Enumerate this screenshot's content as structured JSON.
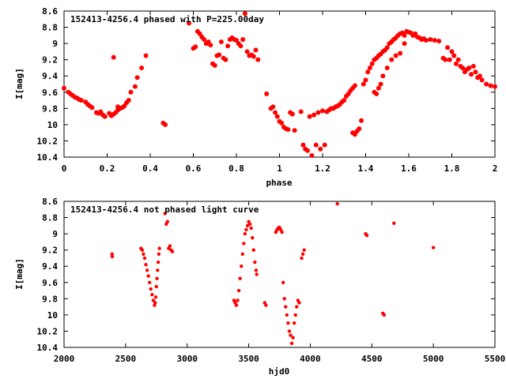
{
  "chart_data": [
    {
      "type": "scatter",
      "title": "152413-4256.4 phased with P=225.00day",
      "xlabel": "phase",
      "ylabel": "I[mag]",
      "xlim": [
        0,
        2
      ],
      "ylim": [
        10.4,
        8.6
      ],
      "y_inverted": true,
      "xticks": [
        "0",
        "0.2",
        "0.4",
        "0.6",
        "0.8",
        "1",
        "1.2",
        "1.4",
        "1.6",
        "1.8",
        "2"
      ],
      "yticks": [
        "8.6",
        "8.8",
        "9",
        "9.2",
        "9.4",
        "9.6",
        "9.8",
        "10",
        "10.2",
        "10.4"
      ],
      "grid": false,
      "marker_color": "#ff0000",
      "points": [
        [
          0.0,
          9.55
        ],
        [
          0.02,
          9.6
        ],
        [
          0.03,
          9.62
        ],
        [
          0.04,
          9.64
        ],
        [
          0.05,
          9.66
        ],
        [
          0.06,
          9.67
        ],
        [
          0.07,
          9.69
        ],
        [
          0.08,
          9.7
        ],
        [
          0.1,
          9.72
        ],
        [
          0.11,
          9.75
        ],
        [
          0.12,
          9.77
        ],
        [
          0.13,
          9.79
        ],
        [
          0.15,
          9.85
        ],
        [
          0.16,
          9.86
        ],
        [
          0.17,
          9.84
        ],
        [
          0.18,
          9.88
        ],
        [
          0.19,
          9.9
        ],
        [
          0.21,
          9.86
        ],
        [
          0.22,
          9.89
        ],
        [
          0.23,
          9.87
        ],
        [
          0.24,
          9.85
        ],
        [
          0.25,
          9.82
        ],
        [
          0.25,
          9.78
        ],
        [
          0.26,
          9.8
        ],
        [
          0.27,
          9.79
        ],
        [
          0.28,
          9.77
        ],
        [
          0.29,
          9.73
        ],
        [
          0.3,
          9.7
        ],
        [
          0.31,
          9.6
        ],
        [
          0.23,
          9.17
        ],
        [
          0.33,
          9.53
        ],
        [
          0.34,
          9.42
        ],
        [
          0.36,
          9.3
        ],
        [
          0.38,
          9.15
        ],
        [
          0.46,
          9.98
        ],
        [
          0.47,
          10.0
        ],
        [
          0.58,
          8.75
        ],
        [
          0.6,
          9.06
        ],
        [
          0.61,
          9.04
        ],
        [
          0.62,
          8.85
        ],
        [
          0.63,
          8.88
        ],
        [
          0.64,
          8.92
        ],
        [
          0.65,
          8.95
        ],
        [
          0.66,
          9.0
        ],
        [
          0.67,
          8.98
        ],
        [
          0.68,
          9.02
        ],
        [
          0.69,
          9.25
        ],
        [
          0.7,
          9.27
        ],
        [
          0.71,
          9.15
        ],
        [
          0.72,
          9.14
        ],
        [
          0.73,
          8.98
        ],
        [
          0.74,
          9.18
        ],
        [
          0.75,
          9.2
        ],
        [
          0.76,
          9.03
        ],
        [
          0.77,
          8.95
        ],
        [
          0.78,
          8.93
        ],
        [
          0.79,
          8.95
        ],
        [
          0.8,
          8.96
        ],
        [
          0.81,
          9.0
        ],
        [
          0.82,
          9.03
        ],
        [
          0.83,
          8.95
        ],
        [
          0.84,
          8.63
        ],
        [
          0.85,
          9.1
        ],
        [
          0.86,
          9.15
        ],
        [
          0.87,
          9.14
        ],
        [
          0.88,
          9.16
        ],
        [
          0.89,
          9.08
        ],
        [
          0.9,
          9.2
        ],
        [
          0.94,
          9.62
        ],
        [
          0.96,
          9.8
        ],
        [
          0.97,
          9.78
        ],
        [
          0.98,
          9.85
        ],
        [
          0.99,
          9.9
        ],
        [
          1.0,
          9.96
        ],
        [
          1.01,
          9.98
        ],
        [
          1.02,
          10.03
        ],
        [
          1.03,
          10.05
        ],
        [
          1.04,
          10.06
        ],
        [
          1.05,
          9.85
        ],
        [
          1.06,
          9.87
        ],
        [
          1.07,
          10.07
        ],
        [
          1.1,
          9.84
        ],
        [
          1.11,
          10.25
        ],
        [
          1.12,
          10.3
        ],
        [
          1.13,
          10.32
        ],
        [
          1.14,
          9.9
        ],
        [
          1.15,
          10.38
        ],
        [
          1.16,
          9.88
        ],
        [
          1.17,
          10.25
        ],
        [
          1.18,
          9.85
        ],
        [
          1.19,
          10.3
        ],
        [
          1.2,
          9.83
        ],
        [
          1.21,
          10.25
        ],
        [
          1.22,
          9.84
        ],
        [
          1.23,
          9.82
        ],
        [
          1.24,
          9.8
        ],
        [
          1.25,
          9.8
        ],
        [
          1.26,
          9.78
        ],
        [
          1.27,
          9.77
        ],
        [
          1.28,
          9.75
        ],
        [
          1.29,
          9.72
        ],
        [
          1.3,
          9.7
        ],
        [
          1.31,
          9.65
        ],
        [
          1.32,
          9.62
        ],
        [
          1.33,
          9.58
        ],
        [
          1.34,
          9.55
        ],
        [
          1.35,
          9.52
        ],
        [
          1.34,
          10.1
        ],
        [
          1.35,
          10.12
        ],
        [
          1.36,
          10.08
        ],
        [
          1.37,
          10.05
        ],
        [
          1.38,
          9.95
        ],
        [
          1.39,
          9.5
        ],
        [
          1.4,
          9.45
        ],
        [
          1.41,
          9.35
        ],
        [
          1.42,
          9.3
        ],
        [
          1.43,
          9.25
        ],
        [
          1.44,
          9.2
        ],
        [
          1.45,
          9.18
        ],
        [
          1.46,
          9.15
        ],
        [
          1.47,
          9.13
        ],
        [
          1.48,
          9.1
        ],
        [
          1.49,
          9.08
        ],
        [
          1.5,
          9.05
        ],
        [
          1.51,
          9.0
        ],
        [
          1.52,
          8.98
        ],
        [
          1.53,
          8.95
        ],
        [
          1.54,
          8.93
        ],
        [
          1.55,
          8.9
        ],
        [
          1.56,
          8.88
        ],
        [
          1.57,
          8.87
        ],
        [
          1.58,
          8.9
        ],
        [
          1.59,
          8.85
        ],
        [
          1.6,
          8.86
        ],
        [
          1.61,
          8.87
        ],
        [
          1.62,
          8.9
        ],
        [
          1.63,
          8.88
        ],
        [
          1.64,
          8.92
        ],
        [
          1.65,
          8.93
        ],
        [
          1.66,
          8.95
        ],
        [
          1.67,
          8.94
        ],
        [
          1.68,
          8.96
        ],
        [
          1.44,
          9.6
        ],
        [
          1.45,
          9.62
        ],
        [
          1.46,
          9.55
        ],
        [
          1.47,
          9.5
        ],
        [
          1.48,
          9.4
        ],
        [
          1.5,
          9.3
        ],
        [
          1.52,
          9.2
        ],
        [
          1.54,
          9.15
        ],
        [
          1.56,
          9.12
        ],
        [
          1.58,
          9.0
        ],
        [
          1.7,
          8.95
        ],
        [
          1.72,
          8.96
        ],
        [
          1.74,
          8.97
        ],
        [
          1.76,
          9.18
        ],
        [
          1.77,
          9.2
        ],
        [
          1.78,
          9.05
        ],
        [
          1.79,
          9.2
        ],
        [
          1.8,
          9.1
        ],
        [
          1.81,
          9.15
        ],
        [
          1.82,
          9.25
        ],
        [
          1.83,
          9.2
        ],
        [
          1.84,
          9.28
        ],
        [
          1.85,
          9.3
        ],
        [
          1.86,
          9.35
        ],
        [
          1.87,
          9.32
        ],
        [
          1.88,
          9.3
        ],
        [
          1.89,
          9.38
        ],
        [
          1.9,
          9.28
        ],
        [
          1.91,
          9.35
        ],
        [
          1.92,
          9.42
        ],
        [
          1.93,
          9.4
        ],
        [
          1.94,
          9.45
        ],
        [
          1.96,
          9.5
        ],
        [
          1.98,
          9.52
        ],
        [
          2.0,
          9.53
        ]
      ]
    },
    {
      "type": "scatter",
      "title": "152413-4256.4 not phased light curve",
      "xlabel": "hjd0",
      "ylabel": "I[mag]",
      "xlim": [
        2000,
        5500
      ],
      "ylim": [
        10.4,
        8.6
      ],
      "y_inverted": true,
      "xticks": [
        "2000",
        "2500",
        "3000",
        "3500",
        "4000",
        "4500",
        "5000",
        "5500"
      ],
      "yticks": [
        "8.6",
        "8.8",
        "9",
        "9.2",
        "9.4",
        "9.6",
        "9.8",
        "10",
        "10.2",
        "10.4"
      ],
      "grid": false,
      "marker_color": "#ff0000",
      "points": [
        [
          2390,
          9.25
        ],
        [
          2392,
          9.28
        ],
        [
          2625,
          9.18
        ],
        [
          2635,
          9.2
        ],
        [
          2645,
          9.25
        ],
        [
          2655,
          9.3
        ],
        [
          2665,
          9.38
        ],
        [
          2675,
          9.45
        ],
        [
          2685,
          9.52
        ],
        [
          2695,
          9.6
        ],
        [
          2705,
          9.68
        ],
        [
          2715,
          9.75
        ],
        [
          2725,
          9.82
        ],
        [
          2735,
          9.88
        ],
        [
          2740,
          9.85
        ],
        [
          2745,
          9.78
        ],
        [
          2750,
          9.65
        ],
        [
          2755,
          9.55
        ],
        [
          2760,
          9.45
        ],
        [
          2765,
          9.35
        ],
        [
          2770,
          9.25
        ],
        [
          2775,
          9.18
        ],
        [
          2820,
          8.75
        ],
        [
          2830,
          8.88
        ],
        [
          2840,
          8.85
        ],
        [
          2850,
          9.18
        ],
        [
          2860,
          9.15
        ],
        [
          2870,
          9.2
        ],
        [
          2880,
          9.22
        ],
        [
          3380,
          9.82
        ],
        [
          3390,
          9.85
        ],
        [
          3400,
          9.88
        ],
        [
          3410,
          9.82
        ],
        [
          3420,
          9.7
        ],
        [
          3430,
          9.55
        ],
        [
          3440,
          9.4
        ],
        [
          3450,
          9.25
        ],
        [
          3460,
          9.12
        ],
        [
          3470,
          9.0
        ],
        [
          3480,
          8.95
        ],
        [
          3490,
          8.9
        ],
        [
          3500,
          8.85
        ],
        [
          3510,
          8.88
        ],
        [
          3520,
          8.93
        ],
        [
          3530,
          9.05
        ],
        [
          3540,
          9.2
        ],
        [
          3550,
          9.35
        ],
        [
          3560,
          9.45
        ],
        [
          3565,
          9.5
        ],
        [
          3630,
          9.85
        ],
        [
          3640,
          9.88
        ],
        [
          3720,
          8.98
        ],
        [
          3730,
          8.95
        ],
        [
          3740,
          8.93
        ],
        [
          3750,
          8.92
        ],
        [
          3760,
          8.95
        ],
        [
          3770,
          8.98
        ],
        [
          3780,
          9.6
        ],
        [
          3790,
          9.8
        ],
        [
          3800,
          9.9
        ],
        [
          3810,
          10.0
        ],
        [
          3820,
          10.1
        ],
        [
          3830,
          10.2
        ],
        [
          3840,
          10.25
        ],
        [
          3850,
          10.35
        ],
        [
          3860,
          10.28
        ],
        [
          3870,
          10.1
        ],
        [
          3880,
          10.0
        ],
        [
          3890,
          9.9
        ],
        [
          3900,
          9.82
        ],
        [
          3910,
          9.85
        ],
        [
          3930,
          9.3
        ],
        [
          3940,
          9.25
        ],
        [
          3950,
          9.2
        ],
        [
          4220,
          8.63
        ],
        [
          4450,
          9.0
        ],
        [
          4460,
          9.02
        ],
        [
          4590,
          9.98
        ],
        [
          4600,
          10.0
        ],
        [
          4680,
          8.87
        ],
        [
          5000,
          9.17
        ]
      ]
    }
  ]
}
